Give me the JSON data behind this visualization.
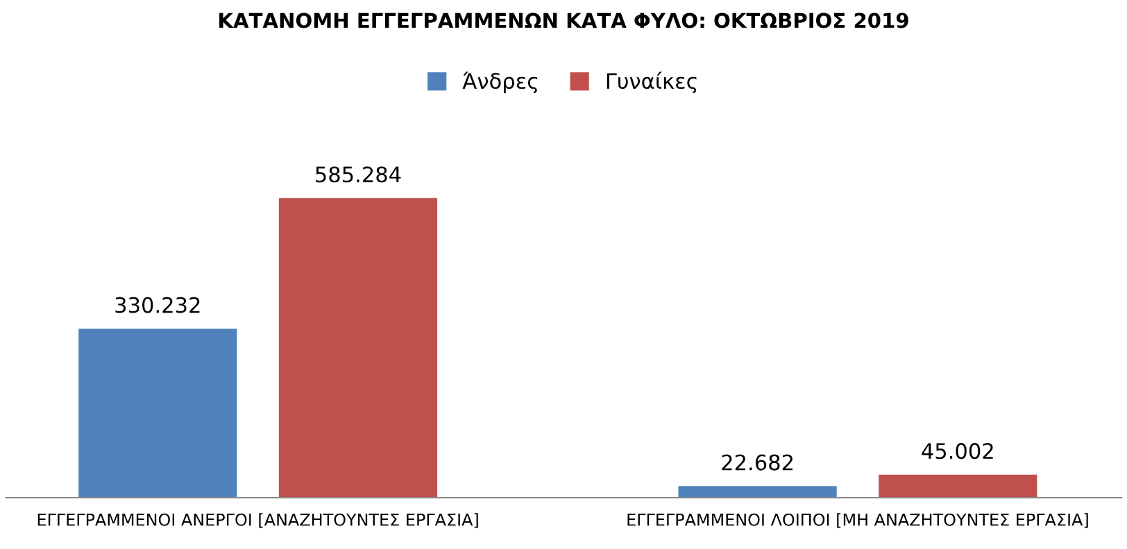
{
  "chart_data": {
    "type": "bar",
    "title": "ΚΑΤΑΝΟΜΗ ΕΓΓΕΓΡΑΜΜΕΝΩΝ ΚΑΤΑ ΦΥΛΟ: ΟΚΤΩΒΡΙΟΣ 2019",
    "categories": [
      "ΕΓΓΕΓΡΑΜΜΕΝΟΙ ΑΝΕΡΓΟΙ [ΑΝΑΖΗΤΟΥΝΤΕΣ ΕΡΓΑΣΙΑ]",
      "ΕΓΓΕΓΡΑΜΜΕΝΟΙ ΛΟΙΠΟΙ [ΜΗ ΑΝΑΖΗΤΟΥΝΤΕΣ ΕΡΓΑΣΙΑ]"
    ],
    "series": [
      {
        "name": "Άνδρες",
        "color": "#4f81bd",
        "values": [
          330232,
          22682
        ],
        "value_labels": [
          "330.232",
          "22.682"
        ]
      },
      {
        "name": "Γυναίκες",
        "color": "#c0504d",
        "values": [
          585284,
          45002
        ],
        "value_labels": [
          "585.284",
          "45.002"
        ]
      }
    ],
    "legend": "top",
    "grid": false,
    "tick_labels": "x"
  }
}
